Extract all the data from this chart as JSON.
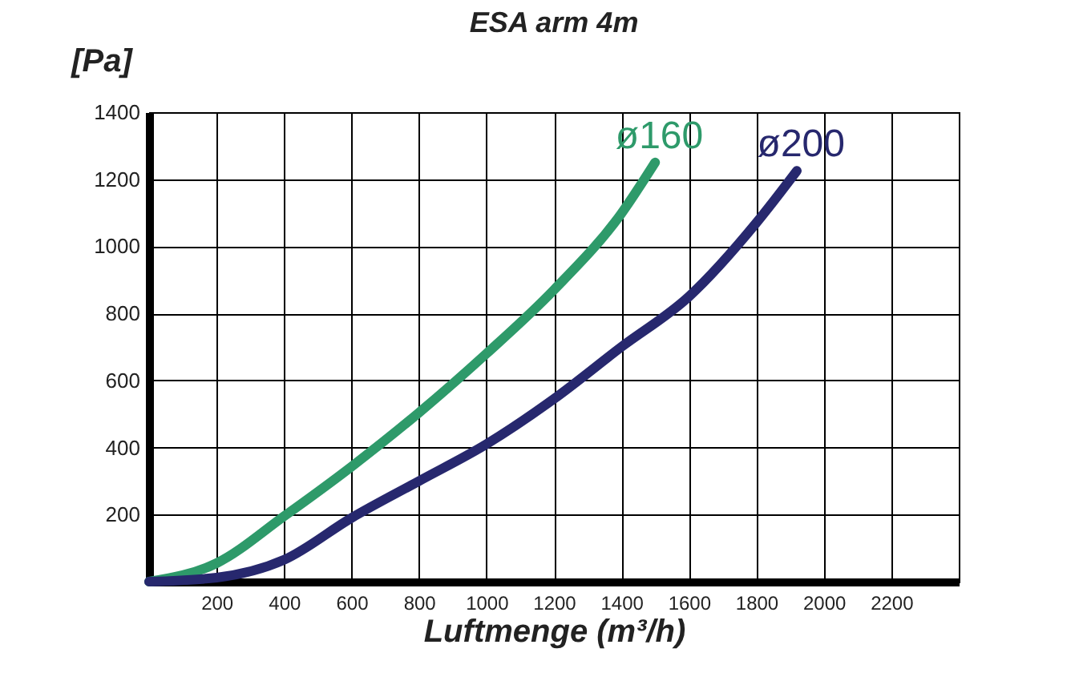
{
  "chart_data": {
    "type": "line",
    "title": "ESA arm 4m",
    "xlabel": "Luftmenge (m³/h)",
    "ylabel": "[Pa]",
    "series": [
      {
        "name": "ø160",
        "color": "#2e9a6a",
        "x": [
          0,
          200,
          400,
          600,
          800,
          1000,
          1200,
          1400,
          1500
        ],
        "values": [
          0,
          55,
          195,
          343,
          504,
          680,
          870,
          1098,
          1250
        ]
      },
      {
        "name": "ø200",
        "color": "#27286e",
        "x": [
          0,
          200,
          400,
          600,
          800,
          1000,
          1200,
          1400,
          1600,
          1800,
          1920
        ],
        "values": [
          0,
          12,
          65,
          190,
          300,
          410,
          545,
          700,
          850,
          1070,
          1225
        ]
      }
    ],
    "xlim": [
      0,
      2400
    ],
    "ylim": [
      0,
      1400
    ],
    "xticks": [
      {
        "value": 0,
        "label": null
      },
      200,
      400,
      600,
      800,
      1000,
      1200,
      1400,
      1600,
      1800,
      2000,
      2200,
      {
        "value": 2400,
        "label": null
      }
    ],
    "yticks": [
      {
        "value": 0,
        "label": null
      },
      200,
      400,
      600,
      800,
      1000,
      1200,
      1400
    ],
    "grid": true,
    "legend": false,
    "marker": "none",
    "line_style": "solid"
  }
}
